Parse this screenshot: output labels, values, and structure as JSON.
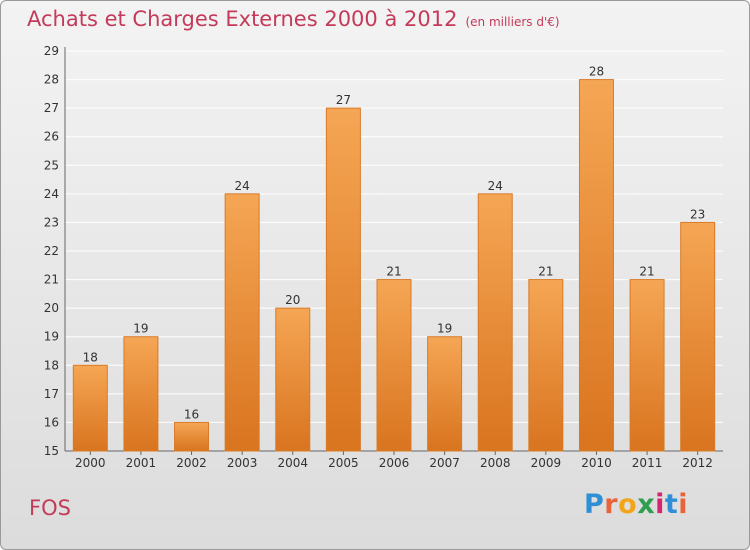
{
  "title": "Achats et Charges Externes 2000 à 2012",
  "unit": "(en milliers d'€)",
  "place": "FOS",
  "logo": {
    "letters": [
      "P",
      "r",
      "o",
      "x",
      "i",
      "t",
      "i"
    ],
    "colors": [
      "#2f8fd6",
      "#e8623a",
      "#f3a51a",
      "#2e9e4f",
      "#d6246e",
      "#2f8fd6",
      "#e8623a"
    ]
  },
  "colors": {
    "bar_top": "#f5a654",
    "bar_bottom": "#d9741f",
    "bar_edge": "#d97b29",
    "label": "#333333",
    "grid": "#ffffff"
  },
  "chart_data": {
    "type": "bar",
    "categories": [
      "2000",
      "2001",
      "2002",
      "2003",
      "2004",
      "2005",
      "2006",
      "2007",
      "2008",
      "2009",
      "2010",
      "2011",
      "2012"
    ],
    "values": [
      18,
      19,
      16,
      24,
      20,
      27,
      21,
      19,
      24,
      21,
      28,
      21,
      23
    ],
    "title": "Achats et Charges Externes 2000 à 2012",
    "xlabel": "",
    "ylabel": "",
    "ylim": [
      15,
      29
    ],
    "yticks": [
      15,
      16,
      17,
      18,
      19,
      20,
      21,
      22,
      23,
      24,
      25,
      26,
      27,
      28,
      29
    ],
    "grid": true,
    "data_labels": true
  }
}
